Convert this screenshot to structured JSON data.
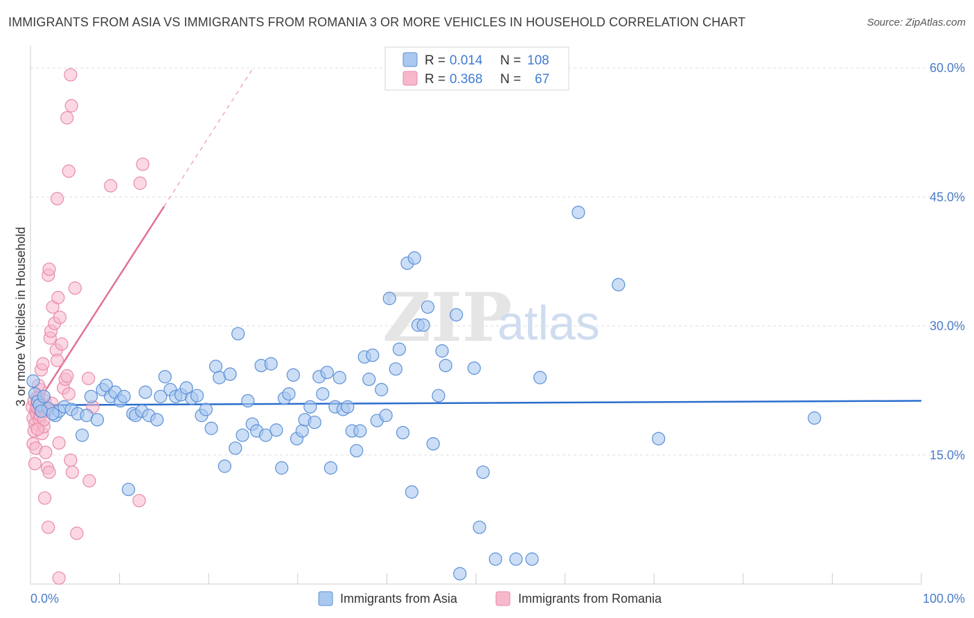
{
  "header": {
    "title": "IMMIGRANTS FROM ASIA VS IMMIGRANTS FROM ROMANIA 3 OR MORE VEHICLES IN HOUSEHOLD CORRELATION CHART",
    "source": "Source: ZipAtlas.com"
  },
  "legend": {
    "rows": [
      {
        "r_label": "R =",
        "r_value": "0.014",
        "n_label": "N =",
        "n_value": "108"
      },
      {
        "r_label": "R =",
        "r_value": "0.368",
        "n_label": "N =",
        "n_value": "67"
      }
    ]
  },
  "watermark": {
    "zip": "ZIP",
    "atlas": "atlas"
  },
  "colors": {
    "asia_fill": "#a9c8f0",
    "asia_stroke": "#5b8fd6",
    "asia_line": "#2a6dcc",
    "romania_fill": "#f7b8cc",
    "romania_stroke": "#e88aa8",
    "romania_line": "#e0709a",
    "tick_label": "#4a7cc9",
    "grid": "#dddddd"
  },
  "chart_data": {
    "type": "scatter",
    "title": "IMMIGRANTS FROM ASIA VS IMMIGRANTS FROM ROMANIA 3 OR MORE VEHICLES IN HOUSEHOLD CORRELATION CHART",
    "xlabel": "",
    "ylabel": "3 or more Vehicles in Household",
    "xlim": [
      0,
      100
    ],
    "ylim": [
      0,
      60
    ],
    "x_tick_labels": [
      "0.0%",
      "100.0%"
    ],
    "y_ticks": [
      15,
      30,
      45,
      60
    ],
    "y_tick_labels": [
      "15.0%",
      "30.0%",
      "45.0%",
      "60.0%"
    ],
    "grid": true,
    "legend_position": "top-center",
    "series": [
      {
        "name": "Immigrants from Asia",
        "R": 0.014,
        "N": 108,
        "trend": {
          "x": [
            0,
            100
          ],
          "y": [
            20.8,
            21.3
          ],
          "style": "solid"
        },
        "points": [
          [
            0.3,
            23.6
          ],
          [
            0.5,
            22.1
          ],
          [
            0.8,
            21.2
          ],
          [
            1.0,
            20.8
          ],
          [
            1.5,
            21.8
          ],
          [
            2.0,
            20.4
          ],
          [
            2.8,
            19.6
          ],
          [
            3.2,
            20.1
          ],
          [
            3.8,
            20.6
          ],
          [
            4.6,
            20.3
          ],
          [
            5.3,
            19.8
          ],
          [
            5.8,
            17.3
          ],
          [
            6.3,
            19.6
          ],
          [
            6.8,
            21.8
          ],
          [
            7.5,
            19.1
          ],
          [
            8.1,
            22.6
          ],
          [
            8.5,
            23.1
          ],
          [
            9.0,
            21.8
          ],
          [
            9.5,
            22.3
          ],
          [
            10.1,
            21.3
          ],
          [
            10.5,
            21.8
          ],
          [
            11.0,
            11.0
          ],
          [
            11.5,
            19.8
          ],
          [
            11.8,
            19.6
          ],
          [
            12.5,
            20.1
          ],
          [
            12.9,
            22.3
          ],
          [
            13.3,
            19.6
          ],
          [
            14.2,
            19.1
          ],
          [
            14.6,
            21.8
          ],
          [
            15.1,
            24.1
          ],
          [
            15.7,
            22.6
          ],
          [
            16.3,
            21.8
          ],
          [
            16.9,
            22.0
          ],
          [
            17.5,
            22.8
          ],
          [
            18.1,
            21.6
          ],
          [
            18.7,
            21.9
          ],
          [
            19.2,
            19.6
          ],
          [
            19.7,
            20.3
          ],
          [
            20.3,
            18.1
          ],
          [
            20.8,
            25.3
          ],
          [
            21.2,
            24.0
          ],
          [
            21.8,
            13.7
          ],
          [
            22.4,
            24.4
          ],
          [
            23.0,
            15.8
          ],
          [
            23.3,
            29.1
          ],
          [
            23.8,
            17.3
          ],
          [
            24.4,
            21.3
          ],
          [
            24.9,
            18.6
          ],
          [
            25.4,
            17.8
          ],
          [
            25.9,
            25.4
          ],
          [
            26.4,
            17.3
          ],
          [
            27.0,
            25.6
          ],
          [
            27.6,
            17.9
          ],
          [
            28.2,
            13.5
          ],
          [
            28.5,
            21.6
          ],
          [
            29.0,
            22.1
          ],
          [
            29.5,
            24.3
          ],
          [
            29.9,
            16.9
          ],
          [
            30.5,
            17.8
          ],
          [
            30.8,
            19.1
          ],
          [
            31.4,
            20.6
          ],
          [
            31.9,
            18.8
          ],
          [
            32.4,
            24.1
          ],
          [
            32.8,
            22.1
          ],
          [
            33.3,
            24.6
          ],
          [
            33.7,
            13.5
          ],
          [
            34.2,
            20.6
          ],
          [
            34.7,
            24.0
          ],
          [
            35.1,
            20.3
          ],
          [
            35.6,
            20.6
          ],
          [
            36.1,
            17.8
          ],
          [
            36.6,
            15.5
          ],
          [
            37.0,
            17.8
          ],
          [
            37.5,
            26.4
          ],
          [
            38.0,
            23.8
          ],
          [
            38.4,
            26.6
          ],
          [
            38.9,
            19.0
          ],
          [
            39.4,
            22.6
          ],
          [
            39.9,
            19.6
          ],
          [
            40.3,
            33.2
          ],
          [
            41.0,
            25.0
          ],
          [
            41.4,
            27.3
          ],
          [
            41.8,
            17.6
          ],
          [
            42.3,
            37.3
          ],
          [
            42.8,
            10.7
          ],
          [
            43.1,
            37.9
          ],
          [
            43.5,
            30.1
          ],
          [
            44.1,
            30.1
          ],
          [
            44.6,
            32.2
          ],
          [
            45.2,
            16.3
          ],
          [
            45.8,
            21.9
          ],
          [
            46.2,
            27.1
          ],
          [
            46.6,
            25.4
          ],
          [
            47.8,
            31.3
          ],
          [
            48.2,
            1.2
          ],
          [
            49.8,
            25.1
          ],
          [
            50.4,
            6.6
          ],
          [
            50.8,
            13.0
          ],
          [
            52.2,
            2.9
          ],
          [
            54.5,
            2.9
          ],
          [
            56.3,
            2.9
          ],
          [
            57.2,
            24.0
          ],
          [
            61.5,
            43.2
          ],
          [
            66.0,
            34.8
          ],
          [
            70.5,
            16.9
          ],
          [
            88.0,
            19.3
          ],
          [
            1.2,
            20.1
          ],
          [
            2.5,
            19.8
          ]
        ]
      },
      {
        "name": "Immigrants from Romania",
        "R": 0.368,
        "N": 67,
        "trend": {
          "x": [
            0,
            15
          ],
          "y": [
            19.8,
            43.9
          ],
          "style": "solid",
          "extended_to": [
            25,
            60
          ],
          "extended_style": "dashed"
        },
        "points": [
          [
            0.2,
            20.6
          ],
          [
            0.3,
            19.3
          ],
          [
            0.4,
            21.3
          ],
          [
            0.5,
            18.6
          ],
          [
            0.6,
            20.1
          ],
          [
            0.7,
            19.8
          ],
          [
            0.8,
            21.8
          ],
          [
            0.9,
            20.3
          ],
          [
            1.0,
            19.1
          ],
          [
            1.1,
            22.6
          ],
          [
            0.3,
            16.3
          ],
          [
            0.4,
            17.8
          ],
          [
            0.6,
            15.8
          ],
          [
            0.5,
            14.0
          ],
          [
            0.9,
            23.1
          ],
          [
            1.2,
            24.9
          ],
          [
            1.4,
            25.6
          ],
          [
            1.6,
            21.3
          ],
          [
            1.8,
            20.1
          ],
          [
            1.3,
            17.5
          ],
          [
            1.5,
            18.3
          ],
          [
            1.7,
            15.3
          ],
          [
            1.9,
            13.5
          ],
          [
            2.1,
            13.0
          ],
          [
            1.6,
            10.0
          ],
          [
            2.0,
            6.6
          ],
          [
            2.2,
            28.6
          ],
          [
            2.3,
            29.4
          ],
          [
            2.5,
            32.2
          ],
          [
            2.7,
            30.3
          ],
          [
            2.9,
            27.2
          ],
          [
            3.1,
            33.3
          ],
          [
            3.3,
            31.0
          ],
          [
            3.5,
            27.9
          ],
          [
            3.0,
            26.0
          ],
          [
            3.7,
            22.8
          ],
          [
            3.9,
            23.8
          ],
          [
            4.1,
            24.2
          ],
          [
            3.2,
            16.4
          ],
          [
            4.3,
            22.1
          ],
          [
            4.5,
            14.4
          ],
          [
            4.7,
            13.0
          ],
          [
            5.0,
            34.4
          ],
          [
            5.2,
            5.9
          ],
          [
            6.5,
            23.9
          ],
          [
            6.6,
            12.0
          ],
          [
            7.0,
            20.6
          ],
          [
            2.0,
            35.9
          ],
          [
            2.1,
            36.6
          ],
          [
            3.0,
            44.8
          ],
          [
            4.3,
            48.0
          ],
          [
            4.1,
            54.2
          ],
          [
            4.6,
            55.6
          ],
          [
            4.5,
            59.2
          ],
          [
            9.0,
            46.3
          ],
          [
            12.3,
            46.6
          ],
          [
            12.6,
            48.8
          ],
          [
            12.2,
            9.7
          ],
          [
            3.2,
            0.7
          ],
          [
            1.0,
            20.9
          ],
          [
            1.1,
            19.6
          ],
          [
            1.5,
            19.1
          ],
          [
            0.7,
            20.6
          ],
          [
            0.9,
            21.6
          ],
          [
            1.3,
            20.8
          ],
          [
            2.4,
            21.0
          ],
          [
            0.8,
            18.0
          ]
        ]
      }
    ]
  },
  "bottom_legend": {
    "items": [
      {
        "label": "Immigrants from Asia"
      },
      {
        "label": "Immigrants from Romania"
      }
    ]
  }
}
